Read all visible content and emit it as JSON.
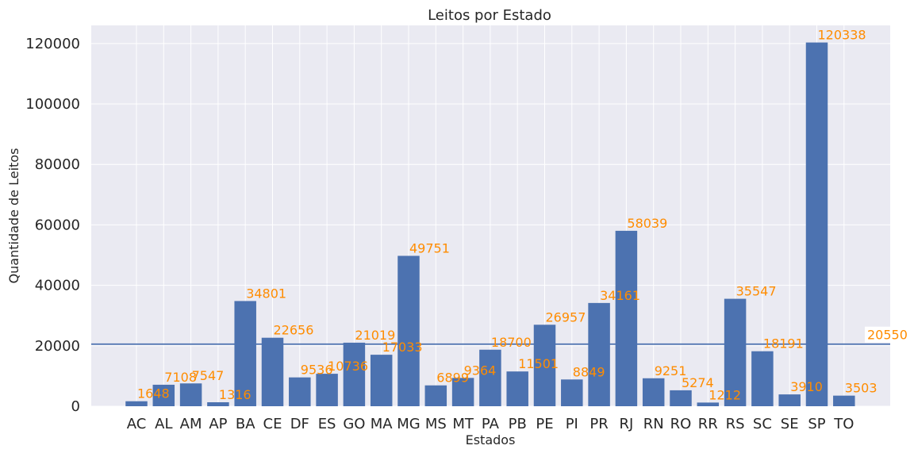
{
  "chart_data": {
    "type": "bar",
    "title": "Leitos por Estado",
    "xlabel": "Estados",
    "ylabel": "Quantidade de Leitos",
    "categories": [
      "AC",
      "AL",
      "AM",
      "AP",
      "BA",
      "CE",
      "DF",
      "ES",
      "GO",
      "MA",
      "MG",
      "MS",
      "MT",
      "PA",
      "PB",
      "PE",
      "PI",
      "PR",
      "RJ",
      "RN",
      "RO",
      "RR",
      "RS",
      "SC",
      "SE",
      "SP",
      "TO"
    ],
    "values": [
      1648,
      7108,
      7547,
      1316,
      34801,
      22656,
      9536,
      10736,
      21019,
      17033,
      49751,
      6899,
      9364,
      18700,
      11501,
      26957,
      8849,
      34161,
      58039,
      9251,
      5274,
      1212,
      35547,
      18191,
      3910,
      120338,
      3503
    ],
    "ylim": [
      0,
      126000
    ],
    "yticks": [
      0,
      20000,
      40000,
      60000,
      80000,
      100000,
      120000
    ],
    "mean_line": {
      "value": 20550,
      "label": "20550"
    },
    "bar_color": "#4c72b0",
    "label_color": "#ff8c00",
    "background_color": "#eaeaf2",
    "grid": true
  }
}
